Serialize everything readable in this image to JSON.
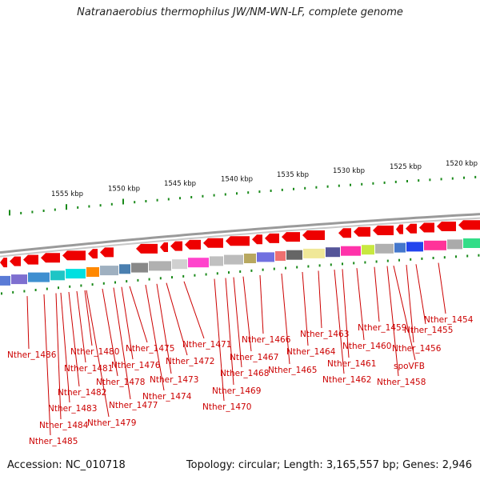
{
  "title": "Natranaerobius thermophilus JW/NM-WN-LF, complete genome",
  "footer": {
    "accession": "Accession: NC_010718",
    "topology": "Topology: circular; Length: 3,165,557 bp; Genes: 2,946"
  },
  "colors": {
    "gene_arrow": "#ee0000",
    "leader_line": "#cc0000",
    "tick": "#1a8a1a",
    "backbone": "#888888"
  },
  "scale": {
    "kbp_labels": [
      "1555 kbp",
      "1550 kbp",
      "1545 kbp",
      "1540 kbp",
      "1535 kbp",
      "1530 kbp",
      "1525 kbp",
      "1520 kbp"
    ]
  },
  "genes": [
    "Nther_1486",
    "Nther_1485",
    "Nther_1484",
    "Nther_1483",
    "Nther_1482",
    "Nther_1481",
    "Nther_1480",
    "Nther_1479",
    "Nther_1478",
    "Nther_1477",
    "Nther_1476",
    "Nther_1475",
    "Nther_1474",
    "Nther_1473",
    "Nther_1472",
    "Nther_1471",
    "Nther_1470",
    "Nther_1469",
    "Nther_1468",
    "Nther_1467",
    "Nther_1466",
    "Nther_1465",
    "Nther_1464",
    "Nther_1463",
    "Nther_1462",
    "Nther_1461",
    "Nther_1460",
    "Nther_1459",
    "spoVFB",
    "Nther_1458",
    "Nther_1456",
    "Nther_1455",
    "Nther_1454"
  ]
}
